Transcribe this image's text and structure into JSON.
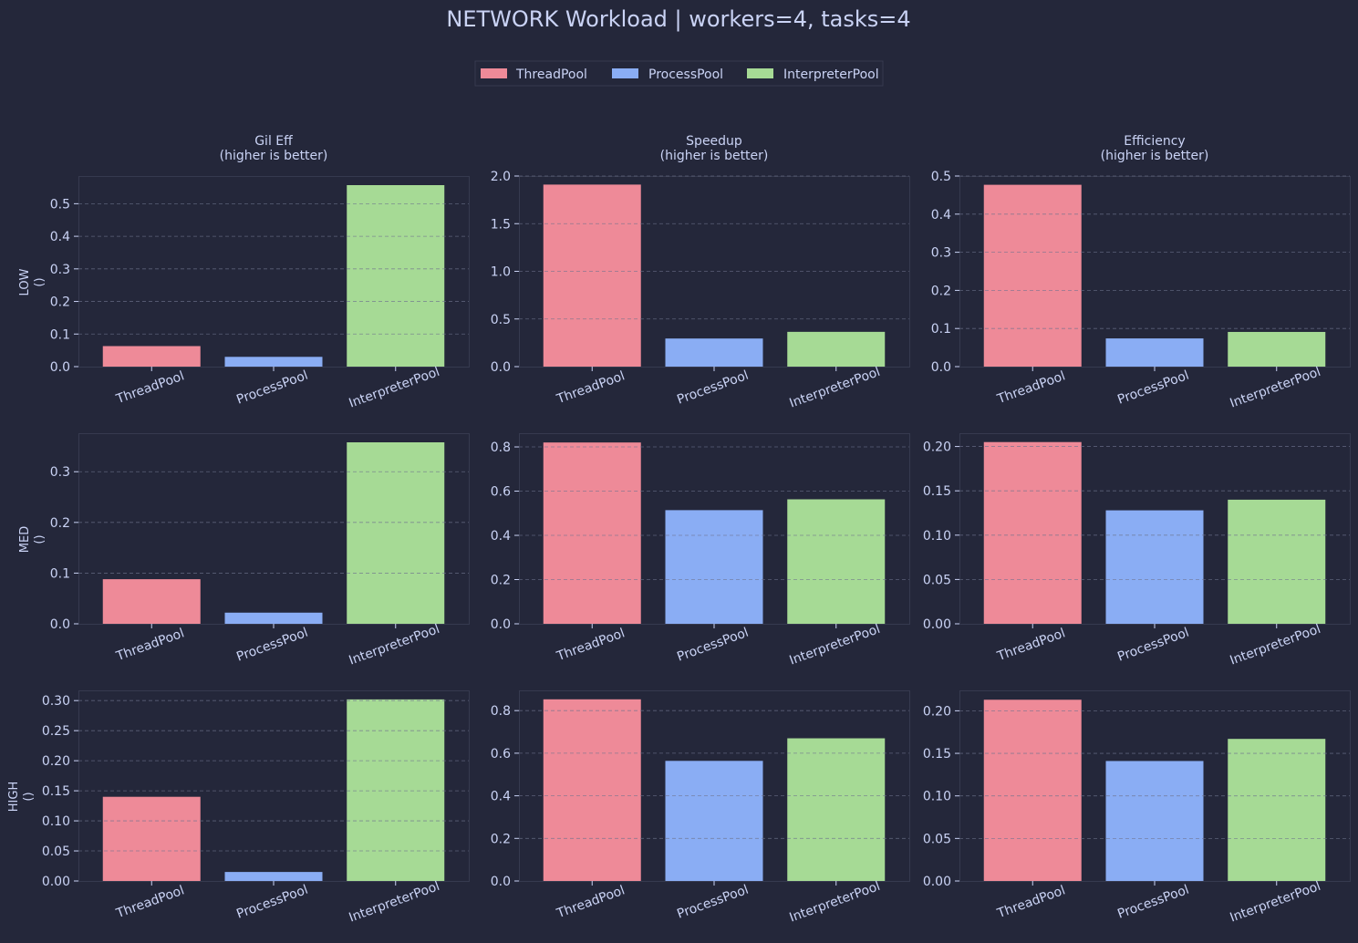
{
  "title": "NETWORK Workload | workers=4, tasks=4",
  "legend": [
    {
      "label": "ThreadPool",
      "color": "#ee8a98"
    },
    {
      "label": "ProcessPool",
      "color": "#8aadf4"
    },
    {
      "label": "InterpreterPool",
      "color": "#a6da95"
    }
  ],
  "colors": {
    "background": "#24273a",
    "panel_border": "#363a4f",
    "grid": "#6e738d",
    "text": "#cad3f5"
  },
  "chart_data": [
    {
      "type": "bar",
      "row": "LOW",
      "row_unit": "()",
      "title": "Gil Eff",
      "subtitle": "(higher is better)",
      "categories": [
        "ThreadPool",
        "ProcessPool",
        "InterpreterPool"
      ],
      "values": [
        0.063,
        0.03,
        0.557
      ],
      "ylim": [
        0,
        0.585
      ],
      "yticks": [
        "0.0",
        "0.1",
        "0.2",
        "0.3",
        "0.4",
        "0.5"
      ],
      "grid": "dashed"
    },
    {
      "type": "bar",
      "row": "LOW",
      "title": "Speedup",
      "subtitle": "(higher is better)",
      "categories": [
        "ThreadPool",
        "ProcessPool",
        "InterpreterPool"
      ],
      "values": [
        1.91,
        0.295,
        0.365
      ],
      "ylim": [
        0,
        2.0
      ],
      "yticks": [
        "0.0",
        "0.5",
        "1.0",
        "1.5",
        "2.0"
      ],
      "grid": "dashed"
    },
    {
      "type": "bar",
      "row": "LOW",
      "title": "Efficiency",
      "subtitle": "(higher is better)",
      "categories": [
        "ThreadPool",
        "ProcessPool",
        "InterpreterPool"
      ],
      "values": [
        0.477,
        0.074,
        0.091
      ],
      "ylim": [
        0,
        0.5
      ],
      "yticks": [
        "0.0",
        "0.1",
        "0.2",
        "0.3",
        "0.4",
        "0.5"
      ],
      "grid": "dashed"
    },
    {
      "type": "bar",
      "row": "MED",
      "row_unit": "()",
      "categories": [
        "ThreadPool",
        "ProcessPool",
        "InterpreterPool"
      ],
      "values": [
        0.088,
        0.022,
        0.358
      ],
      "ylim": [
        0,
        0.376
      ],
      "yticks": [
        "0.0",
        "0.1",
        "0.2",
        "0.3"
      ],
      "grid": "dashed"
    },
    {
      "type": "bar",
      "row": "MED",
      "categories": [
        "ThreadPool",
        "ProcessPool",
        "InterpreterPool"
      ],
      "values": [
        0.82,
        0.514,
        0.563
      ],
      "ylim": [
        0,
        0.862
      ],
      "yticks": [
        "0.0",
        "0.2",
        "0.4",
        "0.6",
        "0.8"
      ],
      "grid": "dashed"
    },
    {
      "type": "bar",
      "row": "MED",
      "categories": [
        "ThreadPool",
        "ProcessPool",
        "InterpreterPool"
      ],
      "values": [
        0.205,
        0.128,
        0.14
      ],
      "ylim": [
        0,
        0.215
      ],
      "yticks": [
        "0.00",
        "0.05",
        "0.10",
        "0.15",
        "0.20"
      ],
      "grid": "dashed"
    },
    {
      "type": "bar",
      "row": "HIGH",
      "row_unit": "()",
      "categories": [
        "ThreadPool",
        "ProcessPool",
        "InterpreterPool"
      ],
      "values": [
        0.14,
        0.015,
        0.302
      ],
      "ylim": [
        0,
        0.317
      ],
      "yticks": [
        "0.00",
        "0.05",
        "0.10",
        "0.15",
        "0.20",
        "0.25",
        "0.30"
      ],
      "grid": "dashed"
    },
    {
      "type": "bar",
      "row": "HIGH",
      "categories": [
        "ThreadPool",
        "ProcessPool",
        "InterpreterPool"
      ],
      "values": [
        0.853,
        0.564,
        0.67
      ],
      "ylim": [
        0,
        0.895
      ],
      "yticks": [
        "0.0",
        "0.2",
        "0.4",
        "0.6",
        "0.8"
      ],
      "grid": "dashed"
    },
    {
      "type": "bar",
      "row": "HIGH",
      "categories": [
        "ThreadPool",
        "ProcessPool",
        "InterpreterPool"
      ],
      "values": [
        0.213,
        0.141,
        0.167
      ],
      "ylim": [
        0,
        0.224
      ],
      "yticks": [
        "0.00",
        "0.05",
        "0.10",
        "0.15",
        "0.20"
      ],
      "grid": "dashed"
    }
  ]
}
